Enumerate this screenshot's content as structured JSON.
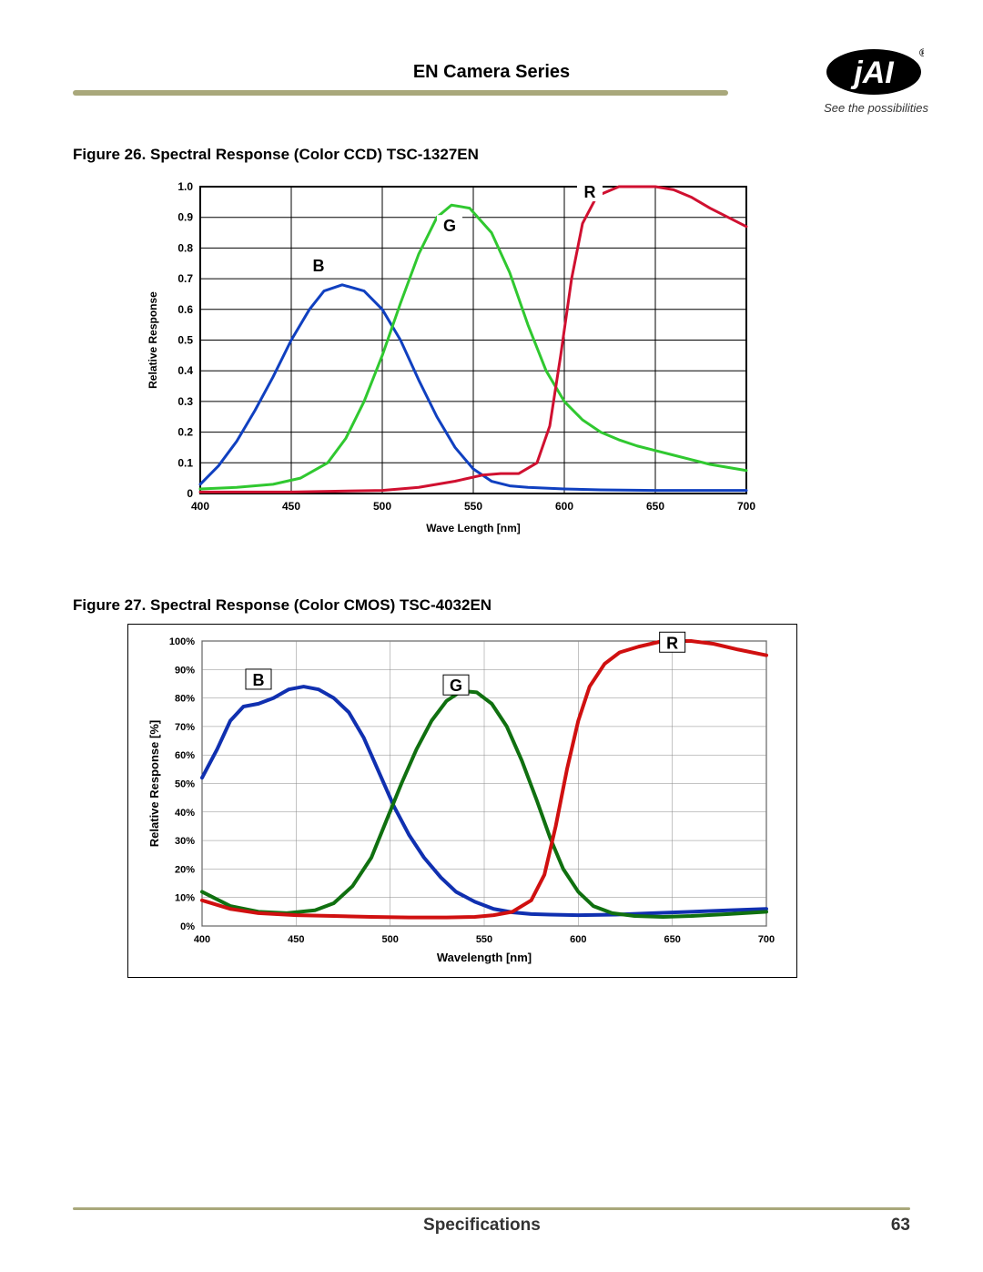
{
  "header": {
    "title": "EN Camera Series",
    "tagline": "See the possibilities",
    "registered_mark": "®",
    "logo_text": "jAI",
    "rule_color": "#a9a87b"
  },
  "footer": {
    "section": "Specifications",
    "page_number": "63",
    "rule_color": "#a9a87b"
  },
  "figure26": {
    "caption": "Figure 26.  Spectral Response (Color CCD) TSC-1327EN",
    "type": "line",
    "xlabel": "Wave Length [nm]",
    "ylabel": "Relative Response",
    "xlim": [
      400,
      700
    ],
    "ylim": [
      0,
      1.0
    ],
    "xtick_step": 50,
    "ytick_step": 0.1,
    "xtick_labels": [
      "400",
      "450",
      "500",
      "550",
      "600",
      "650",
      "700"
    ],
    "ytick_labels": [
      "0",
      "0.1",
      "0.2",
      "0.3",
      "0.4",
      "0.5",
      "0.6",
      "0.7",
      "0.8",
      "0.9",
      "1.0"
    ],
    "background_color": "#ffffff",
    "grid_color": "#000000",
    "grid_width": 1,
    "line_width": 3,
    "axis_fontsize": 12,
    "tick_fontsize": 12,
    "series_label_fontsize": 18,
    "series": {
      "B": {
        "color": "#1040c0",
        "label": "B",
        "label_pos": [
          465,
          0.73
        ],
        "points": [
          [
            400,
            0.03
          ],
          [
            410,
            0.09
          ],
          [
            420,
            0.17
          ],
          [
            430,
            0.27
          ],
          [
            440,
            0.38
          ],
          [
            450,
            0.5
          ],
          [
            460,
            0.6
          ],
          [
            468,
            0.66
          ],
          [
            478,
            0.68
          ],
          [
            490,
            0.66
          ],
          [
            500,
            0.6
          ],
          [
            510,
            0.5
          ],
          [
            520,
            0.37
          ],
          [
            530,
            0.25
          ],
          [
            540,
            0.15
          ],
          [
            550,
            0.08
          ],
          [
            560,
            0.04
          ],
          [
            570,
            0.025
          ],
          [
            580,
            0.02
          ],
          [
            600,
            0.015
          ],
          [
            620,
            0.012
          ],
          [
            650,
            0.01
          ],
          [
            680,
            0.01
          ],
          [
            700,
            0.01
          ]
        ]
      },
      "G": {
        "color": "#30c830",
        "label": "G",
        "label_pos": [
          537,
          0.86
        ],
        "points": [
          [
            400,
            0.015
          ],
          [
            420,
            0.02
          ],
          [
            440,
            0.03
          ],
          [
            455,
            0.05
          ],
          [
            470,
            0.1
          ],
          [
            480,
            0.18
          ],
          [
            490,
            0.3
          ],
          [
            500,
            0.45
          ],
          [
            510,
            0.62
          ],
          [
            520,
            0.78
          ],
          [
            530,
            0.9
          ],
          [
            538,
            0.94
          ],
          [
            548,
            0.93
          ],
          [
            560,
            0.85
          ],
          [
            570,
            0.72
          ],
          [
            580,
            0.55
          ],
          [
            590,
            0.4
          ],
          [
            600,
            0.3
          ],
          [
            610,
            0.24
          ],
          [
            620,
            0.2
          ],
          [
            630,
            0.175
          ],
          [
            640,
            0.155
          ],
          [
            650,
            0.14
          ],
          [
            660,
            0.125
          ],
          [
            670,
            0.11
          ],
          [
            680,
            0.095
          ],
          [
            690,
            0.085
          ],
          [
            700,
            0.075
          ]
        ]
      },
      "R": {
        "color": "#d01030",
        "label": "R",
        "label_pos": [
          614,
          0.97
        ],
        "points": [
          [
            400,
            0.005
          ],
          [
            450,
            0.005
          ],
          [
            500,
            0.01
          ],
          [
            520,
            0.02
          ],
          [
            540,
            0.04
          ],
          [
            555,
            0.06
          ],
          [
            565,
            0.065
          ],
          [
            575,
            0.065
          ],
          [
            585,
            0.1
          ],
          [
            592,
            0.22
          ],
          [
            598,
            0.45
          ],
          [
            604,
            0.7
          ],
          [
            610,
            0.88
          ],
          [
            618,
            0.97
          ],
          [
            630,
            1.0
          ],
          [
            640,
            1.0
          ],
          [
            650,
            1.0
          ],
          [
            660,
            0.99
          ],
          [
            670,
            0.965
          ],
          [
            680,
            0.93
          ],
          [
            690,
            0.9
          ],
          [
            700,
            0.87
          ]
        ]
      }
    }
  },
  "figure27": {
    "caption": "Figure 27.  Spectral Response (Color CMOS) TSC-4032EN",
    "type": "line",
    "xlabel": "Wavelength [nm]",
    "ylabel": "Relative Response  [%]",
    "xlim": [
      400,
      700
    ],
    "ylim": [
      0,
      100
    ],
    "xtick_step": 50,
    "ytick_step": 10,
    "xtick_labels": [
      "400",
      "450",
      "500",
      "550",
      "600",
      "650",
      "700"
    ],
    "ytick_labels": [
      "0%",
      "10%",
      "20%",
      "30%",
      "40%",
      "50%",
      "60%",
      "70%",
      "80%",
      "90%",
      "100%"
    ],
    "background_color": "#ffffff",
    "grid_color": "#888888",
    "grid_width": 0.5,
    "border_color": "#000000",
    "line_width": 4,
    "axis_fontsize": 13,
    "tick_fontsize": 11,
    "series_label_fontsize": 18,
    "series": {
      "B": {
        "color": "#1030b0",
        "label": "B",
        "label_pos": [
          430,
          85
        ],
        "points": [
          [
            400,
            52
          ],
          [
            408,
            62
          ],
          [
            415,
            72
          ],
          [
            422,
            77
          ],
          [
            430,
            78
          ],
          [
            438,
            80
          ],
          [
            446,
            83
          ],
          [
            454,
            84
          ],
          [
            462,
            83
          ],
          [
            470,
            80
          ],
          [
            478,
            75
          ],
          [
            486,
            66
          ],
          [
            494,
            54
          ],
          [
            502,
            42
          ],
          [
            510,
            32
          ],
          [
            518,
            24
          ],
          [
            527,
            17
          ],
          [
            535,
            12
          ],
          [
            545,
            8.5
          ],
          [
            555,
            6
          ],
          [
            565,
            4.8
          ],
          [
            575,
            4.2
          ],
          [
            585,
            4
          ],
          [
            600,
            3.8
          ],
          [
            620,
            4
          ],
          [
            640,
            4.5
          ],
          [
            660,
            5
          ],
          [
            680,
            5.5
          ],
          [
            700,
            6
          ]
        ]
      },
      "G": {
        "color": "#107010",
        "label": "G",
        "label_pos": [
          535,
          83
        ],
        "points": [
          [
            400,
            12
          ],
          [
            415,
            7
          ],
          [
            430,
            5
          ],
          [
            445,
            4.5
          ],
          [
            460,
            5.5
          ],
          [
            470,
            8
          ],
          [
            480,
            14
          ],
          [
            490,
            24
          ],
          [
            498,
            37
          ],
          [
            506,
            50
          ],
          [
            514,
            62
          ],
          [
            522,
            72
          ],
          [
            530,
            79
          ],
          [
            538,
            82.5
          ],
          [
            546,
            82
          ],
          [
            554,
            78
          ],
          [
            562,
            70
          ],
          [
            570,
            58
          ],
          [
            578,
            44
          ],
          [
            585,
            31
          ],
          [
            592,
            20
          ],
          [
            600,
            12
          ],
          [
            608,
            7
          ],
          [
            618,
            4.5
          ],
          [
            630,
            3.5
          ],
          [
            645,
            3.2
          ],
          [
            660,
            3.5
          ],
          [
            680,
            4.2
          ],
          [
            700,
            5
          ]
        ]
      },
      "R": {
        "color": "#d01010",
        "label": "R",
        "label_pos": [
          650,
          98
        ],
        "points": [
          [
            400,
            9
          ],
          [
            415,
            6
          ],
          [
            430,
            4.5
          ],
          [
            450,
            3.8
          ],
          [
            470,
            3.5
          ],
          [
            490,
            3.2
          ],
          [
            510,
            3
          ],
          [
            530,
            3
          ],
          [
            545,
            3.2
          ],
          [
            555,
            3.8
          ],
          [
            565,
            5
          ],
          [
            575,
            9
          ],
          [
            582,
            18
          ],
          [
            588,
            35
          ],
          [
            594,
            55
          ],
          [
            600,
            72
          ],
          [
            606,
            84
          ],
          [
            614,
            92
          ],
          [
            622,
            96
          ],
          [
            632,
            98
          ],
          [
            645,
            100
          ],
          [
            660,
            100
          ],
          [
            672,
            99
          ],
          [
            685,
            97
          ],
          [
            700,
            95
          ]
        ]
      }
    }
  }
}
